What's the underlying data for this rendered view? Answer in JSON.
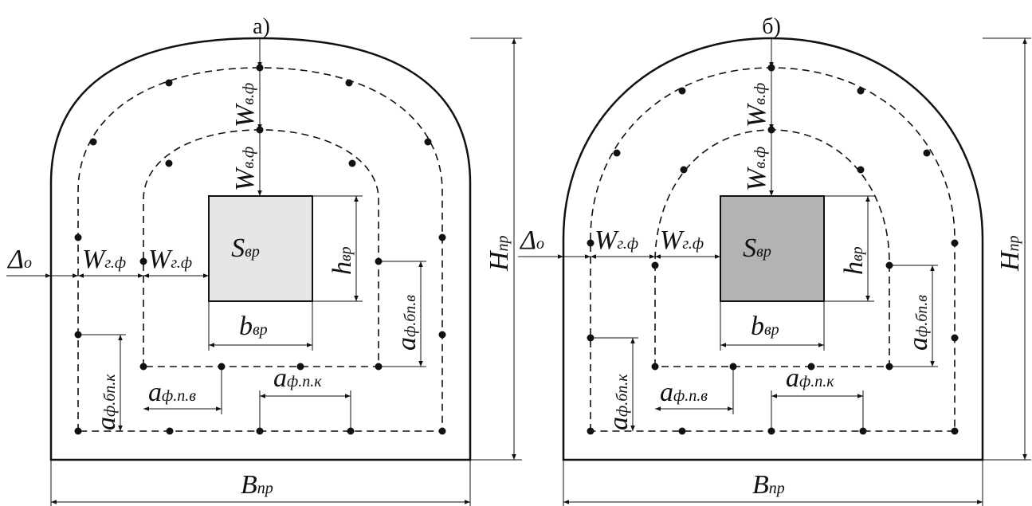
{
  "panels": [
    {
      "id": "a",
      "title": "а)",
      "cut_fill": "#e6e6e6",
      "shape": "semicircular-arch"
    },
    {
      "id": "b",
      "title": "б)",
      "cut_fill": "#b3b3b3",
      "shape": "pointed-arch"
    }
  ],
  "labels": {
    "delta_main": "Δ",
    "delta_sub": "о",
    "w_main": "W",
    "w_g_sub": "г.ф",
    "w_v_sub": "в.ф",
    "s_main": "S",
    "s_sub": "вр",
    "h_main": "h",
    "h_sub": "вр",
    "b_main": "b",
    "b_sub": "вр",
    "H_main": "H",
    "H_sub": "пр",
    "B_main": "B",
    "B_sub": "пр",
    "a_main": "a",
    "a_fpv_sub": "ф.п.в",
    "a_fpk_sub": "ф.п.к",
    "a_fbpk_sub": "ф.бп.к",
    "a_fbpv_sub": "ф.бп.в"
  }
}
